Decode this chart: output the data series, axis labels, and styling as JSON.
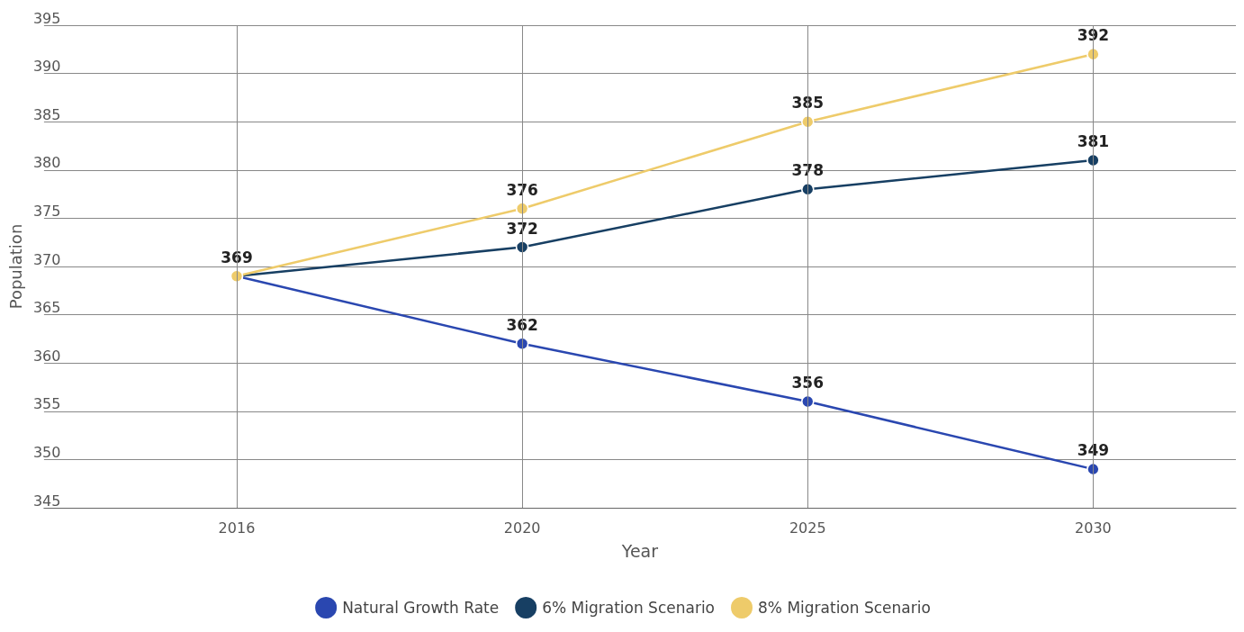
{
  "chart_data": {
    "type": "line",
    "xlabel": "Year",
    "ylabel": "Population",
    "categories": [
      "2016",
      "2020",
      "2025",
      "2030"
    ],
    "series": [
      {
        "name": "Natural Growth Rate",
        "color": "#2a47b0",
        "values": [
          369,
          362,
          356,
          349
        ],
        "value_labels": [
          null,
          "362",
          "356",
          "349"
        ]
      },
      {
        "name": "6% Migration Scenario",
        "color": "#173f63",
        "values": [
          369,
          372,
          378,
          381
        ],
        "value_labels": [
          null,
          "372",
          "378",
          "381"
        ]
      },
      {
        "name": "8% Migration Scenario",
        "color": "#eecb6a",
        "values": [
          369,
          376,
          385,
          392
        ],
        "value_labels": [
          "369",
          "376",
          "385",
          "392"
        ]
      }
    ],
    "ylim": [
      345,
      395
    ],
    "yticks": [
      345,
      350,
      355,
      360,
      365,
      370,
      375,
      380,
      385,
      390,
      395
    ],
    "grid": true,
    "legend": "bottom",
    "marker": "circle",
    "line_style": "solid"
  }
}
